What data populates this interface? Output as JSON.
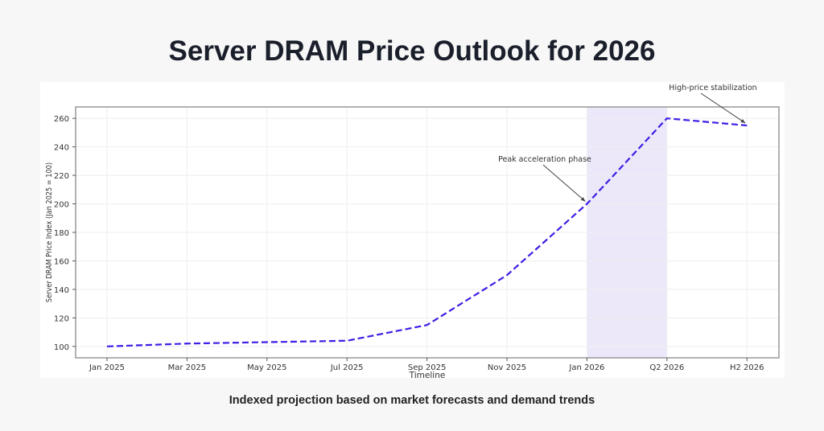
{
  "header": {
    "title": "Server DRAM Price Outlook for 2026"
  },
  "footer": {
    "subtitle": "Indexed projection based on market forecasts and demand trends"
  },
  "chart_data": {
    "type": "line",
    "title": "",
    "xlabel": "Timeline",
    "ylabel": "Server DRAM Price Index (Jan 2025 = 100)",
    "categories": [
      "Jan 2025",
      "Mar 2025",
      "May 2025",
      "Jul 2025",
      "Sep 2025",
      "Nov 2025",
      "Jan 2026",
      "Q2 2026",
      "H2 2026"
    ],
    "values": [
      100,
      102,
      103,
      104,
      115,
      150,
      200,
      260,
      255
    ],
    "ylim": [
      92,
      268
    ],
    "yticks": [
      100,
      120,
      140,
      160,
      180,
      200,
      220,
      240,
      260
    ],
    "grid": true,
    "line_style": "dashed",
    "line_color": "#3b1fe6",
    "shaded_span": {
      "from": "Jan 2026",
      "to": "Q2 2026",
      "color": "#ece8fa"
    },
    "annotations": [
      {
        "text": "Peak acceleration phase",
        "target": "Jan 2026",
        "value": 200
      },
      {
        "text": "High-price stabilization",
        "target": "H2 2026",
        "value": 255
      }
    ]
  }
}
